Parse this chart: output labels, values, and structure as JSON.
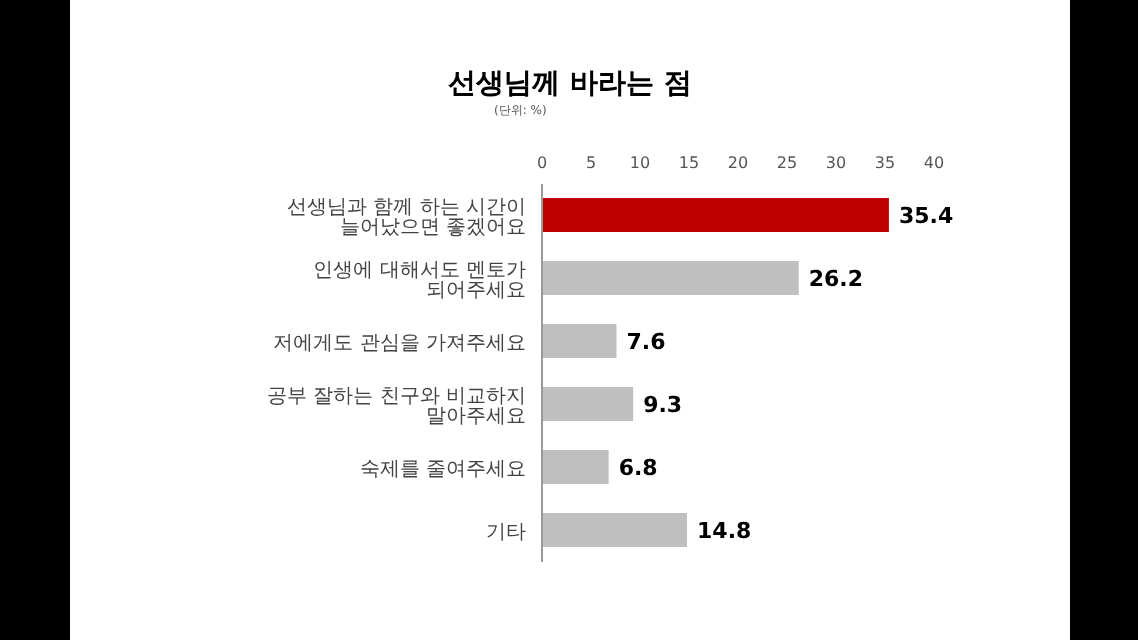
{
  "chart_data": {
    "type": "bar",
    "orientation": "horizontal",
    "title": "선생님께 바라는 점",
    "subtitle": "(단위: %)",
    "categories": [
      "선생님과 함께 하는 시간이 늘어났으면 좋겠어요",
      "인생에 대해서도 멘토가 되어주세요",
      "저에게도 관심을 가져주세요",
      "공부 잘하는 친구와 비교하지 말아주세요",
      "숙제를 줄여주세요",
      "기타"
    ],
    "values": [
      35.4,
      26.2,
      7.6,
      9.3,
      6.8,
      14.8
    ],
    "colors": [
      "#c00000",
      "#bfbfbf",
      "#bfbfbf",
      "#bfbfbf",
      "#bfbfbf",
      "#bfbfbf"
    ],
    "xlim": [
      0,
      40
    ],
    "xticks": [
      0,
      5,
      10,
      15,
      20,
      25,
      30,
      35,
      40
    ],
    "data_labels": true,
    "grid": false
  }
}
